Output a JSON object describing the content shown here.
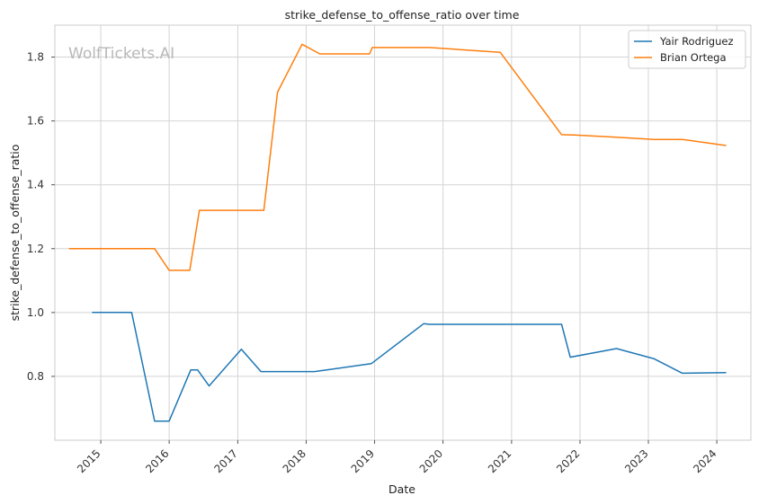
{
  "chart_data": {
    "type": "line",
    "title": "strike_defense_to_offense_ratio over time",
    "xlabel": "Date",
    "ylabel": "strike_defense_to_offense_ratio",
    "watermark": "WolfTickets.AI",
    "xlim": [
      "2014-05-01",
      "2024-07-01"
    ],
    "ylim": [
      0.6,
      1.9
    ],
    "x_ticks": [
      "2015",
      "2016",
      "2017",
      "2018",
      "2019",
      "2020",
      "2021",
      "2022",
      "2023",
      "2024"
    ],
    "y_ticks": [
      "0.8",
      "1.0",
      "1.2",
      "1.4",
      "1.6",
      "1.8"
    ],
    "y_tick_values": [
      0.8,
      1.0,
      1.2,
      1.4,
      1.6,
      1.8
    ],
    "grid": true,
    "legend_position": "top-right",
    "series": [
      {
        "name": "Yair Rodriguez",
        "color": "#1f77b4",
        "points": [
          {
            "x": "2014-11-15",
            "y": 1.0
          },
          {
            "x": "2015-06-15",
            "y": 1.0
          },
          {
            "x": "2015-10-15",
            "y": 0.66
          },
          {
            "x": "2016-01-01",
            "y": 0.66
          },
          {
            "x": "2016-04-25",
            "y": 0.82
          },
          {
            "x": "2016-06-01",
            "y": 0.82
          },
          {
            "x": "2016-08-01",
            "y": 0.77
          },
          {
            "x": "2017-01-20",
            "y": 0.885
          },
          {
            "x": "2017-05-05",
            "y": 0.815
          },
          {
            "x": "2018-02-15",
            "y": 0.815
          },
          {
            "x": "2018-11-10",
            "y": 0.837
          },
          {
            "x": "2018-12-15",
            "y": 0.84
          },
          {
            "x": "2019-09-20",
            "y": 0.965
          },
          {
            "x": "2019-10-20",
            "y": 0.963
          },
          {
            "x": "2021-09-25",
            "y": 0.963
          },
          {
            "x": "2021-11-10",
            "y": 0.86
          },
          {
            "x": "2022-07-15",
            "y": 0.887
          },
          {
            "x": "2023-02-01",
            "y": 0.855
          },
          {
            "x": "2023-07-01",
            "y": 0.81
          },
          {
            "x": "2024-02-20",
            "y": 0.812
          }
        ]
      },
      {
        "name": "Brian Ortega",
        "color": "#ff7f0e",
        "points": [
          {
            "x": "2014-07-15",
            "y": 1.2
          },
          {
            "x": "2015-10-15",
            "y": 1.2
          },
          {
            "x": "2016-01-01",
            "y": 1.132
          },
          {
            "x": "2016-04-20",
            "y": 1.132
          },
          {
            "x": "2016-06-10",
            "y": 1.32
          },
          {
            "x": "2017-05-20",
            "y": 1.32
          },
          {
            "x": "2017-08-01",
            "y": 1.69
          },
          {
            "x": "2017-12-10",
            "y": 1.84
          },
          {
            "x": "2018-03-15",
            "y": 1.81
          },
          {
            "x": "2018-12-05",
            "y": 1.81
          },
          {
            "x": "2018-12-20",
            "y": 1.83
          },
          {
            "x": "2019-10-20",
            "y": 1.83
          },
          {
            "x": "2020-11-01",
            "y": 1.815
          },
          {
            "x": "2021-09-25",
            "y": 1.557
          },
          {
            "x": "2021-12-01",
            "y": 1.556
          },
          {
            "x": "2022-07-15",
            "y": 1.549
          },
          {
            "x": "2023-02-01",
            "y": 1.542
          },
          {
            "x": "2023-07-01",
            "y": 1.542
          },
          {
            "x": "2024-02-20",
            "y": 1.523
          }
        ]
      }
    ]
  }
}
